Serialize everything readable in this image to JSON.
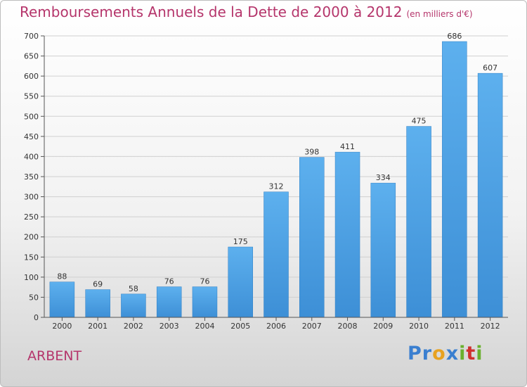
{
  "chart_data": {
    "type": "bar",
    "title": "Remboursements Annuels de la Dette de 2000 à 2012",
    "subtitle": "(en milliers d'€)",
    "categories": [
      "2000",
      "2001",
      "2002",
      "2003",
      "2004",
      "2005",
      "2006",
      "2007",
      "2008",
      "2009",
      "2010",
      "2011",
      "2012"
    ],
    "values": [
      88,
      69,
      58,
      76,
      76,
      175,
      312,
      398,
      411,
      334,
      475,
      686,
      607
    ],
    "ylim": [
      0,
      700
    ],
    "yticks": [
      0,
      50,
      100,
      150,
      200,
      250,
      300,
      350,
      400,
      450,
      500,
      550,
      600,
      650,
      700
    ],
    "grid": true,
    "bar_color": "#3d8fd6",
    "bar_color_light": "#5db0ee",
    "xlabel": "",
    "ylabel": ""
  },
  "commune": "ARBENT",
  "logo": {
    "letters": [
      {
        "char": "P",
        "color": "#3a7fd0"
      },
      {
        "char": "r",
        "color": "#3a7fd0"
      },
      {
        "char": "o",
        "color": "#e8a220"
      },
      {
        "char": "x",
        "color": "#3a7fd0"
      },
      {
        "char": "i",
        "color": "#6ab02e"
      },
      {
        "char": "t",
        "color": "#d0302e"
      },
      {
        "char": "i",
        "color": "#6ab02e"
      }
    ]
  },
  "colors": {
    "title": "#b5356b",
    "grid": "#d0d0d0",
    "axis": "#555555"
  }
}
